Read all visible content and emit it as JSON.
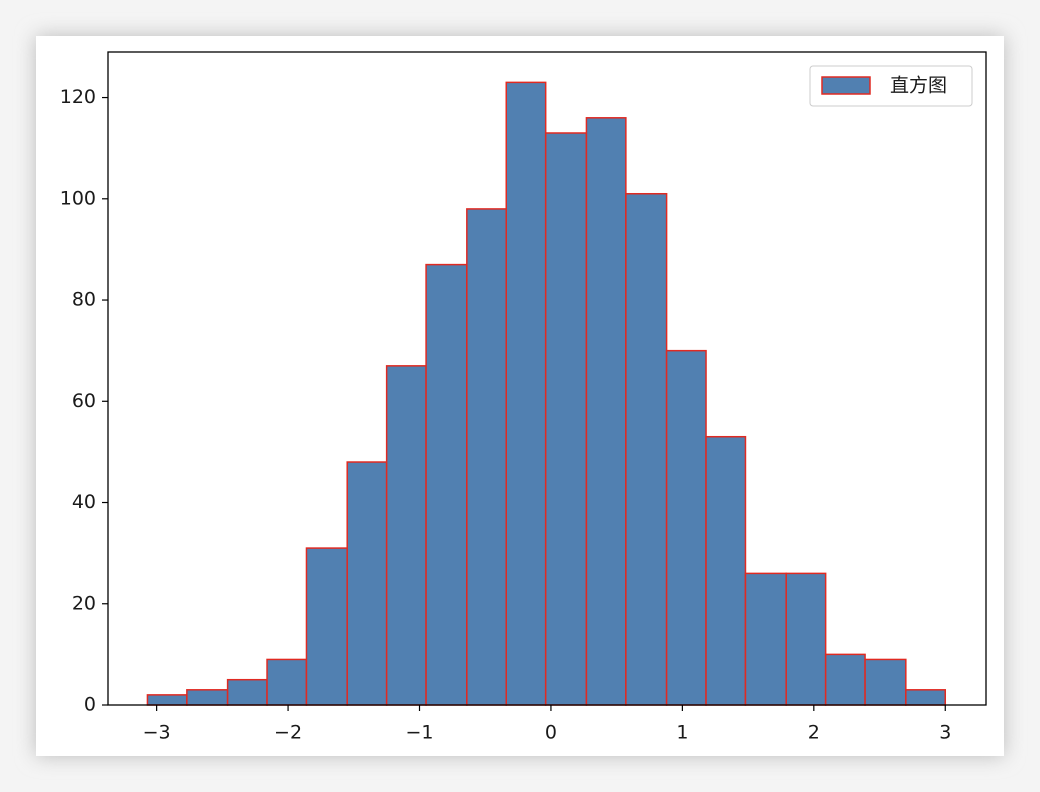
{
  "chart_data": {
    "type": "histogram",
    "bins": [
      -3.07,
      -2.77,
      -2.46,
      -2.16,
      -1.86,
      -1.55,
      -1.25,
      -0.95,
      -0.64,
      -0.34,
      -0.04,
      0.27,
      0.57,
      0.88,
      1.18,
      1.48,
      1.79,
      2.09,
      2.39,
      2.7,
      3.0
    ],
    "series": [
      {
        "name": "直方图",
        "color": "#5180b1",
        "edgecolor": "#e02a22",
        "values": [
          2,
          3,
          5,
          9,
          31,
          48,
          67,
          87,
          98,
          123,
          113,
          116,
          101,
          70,
          53,
          26,
          26,
          10,
          9,
          3
        ]
      }
    ],
    "xlim": [
      -3.37,
      3.31
    ],
    "xticks": [
      {
        "value": -3,
        "label": "−3"
      },
      {
        "value": -2,
        "label": "−2"
      },
      {
        "value": -1,
        "label": "−1"
      },
      0,
      1,
      2,
      3
    ],
    "ylim": [
      0,
      129
    ],
    "yticks": [
      0,
      20,
      40,
      60,
      80,
      100,
      120
    ],
    "legend": "upper right"
  }
}
